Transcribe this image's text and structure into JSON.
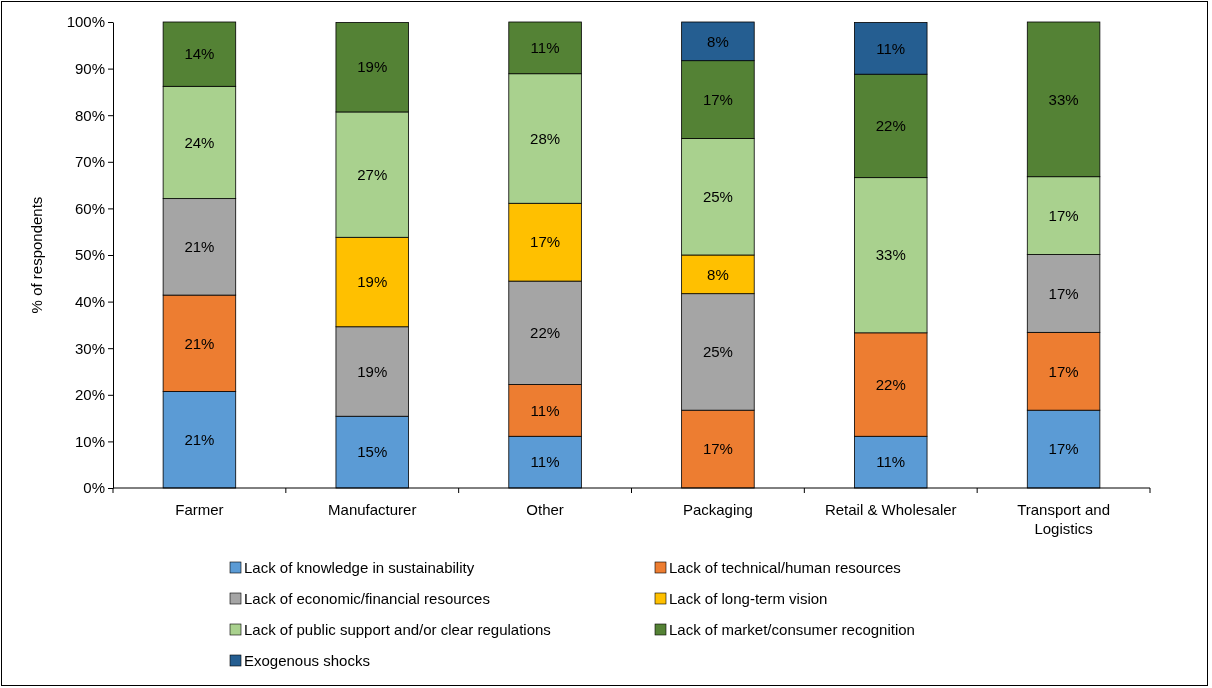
{
  "chart_data": {
    "type": "bar",
    "stacked": true,
    "ylabel": "% of respondents",
    "categories": [
      "Farmer",
      "Manufacturer",
      "Other",
      "Packaging",
      "Retail & Wholesaler",
      "Transport and Logistics"
    ],
    "ylim": [
      0,
      100
    ],
    "yticks": [
      {
        "value": 0,
        "label": "0%"
      },
      {
        "value": 10,
        "label": "10%"
      },
      {
        "value": 20,
        "label": "20%"
      },
      {
        "value": 30,
        "label": "30%"
      },
      {
        "value": 40,
        "label": "40%"
      },
      {
        "value": 50,
        "label": "50%"
      },
      {
        "value": 60,
        "label": "60%"
      },
      {
        "value": 70,
        "label": "70%"
      },
      {
        "value": 80,
        "label": "80%"
      },
      {
        "value": 90,
        "label": "90%"
      },
      {
        "value": 100,
        "label": "100%"
      }
    ],
    "grid": false,
    "legend": "bottom",
    "series": [
      {
        "name": "Lack of knowledge in sustainability",
        "color": "#5b9bd5",
        "values": [
          20.7,
          15.4,
          11.1,
          0,
          11.1,
          16.7
        ],
        "value_labels": [
          "21%",
          "15%",
          "11%",
          null,
          "11%",
          "17%"
        ]
      },
      {
        "name": "Lack of technical/human resources",
        "color": "#ed7d31",
        "values": [
          20.7,
          0,
          11.1,
          16.7,
          22.2,
          16.7
        ],
        "value_labels": [
          "21%",
          null,
          "11%",
          "17%",
          "22%",
          "17%"
        ]
      },
      {
        "name": "Lack of economic/financial resources",
        "color": "#a5a5a5",
        "values": [
          20.7,
          19.2,
          22.2,
          25,
          0,
          16.7
        ],
        "value_labels": [
          "21%",
          "19%",
          "22%",
          "25%",
          null,
          "17%"
        ]
      },
      {
        "name": "Lack of long-term vision",
        "color": "#ffc000",
        "values": [
          0,
          19.2,
          16.7,
          8.3,
          0,
          0
        ],
        "value_labels": [
          null,
          "19%",
          "17%",
          "8%",
          null,
          null
        ]
      },
      {
        "name": "Lack of public support and/or clear regulations",
        "color": "#a9d18e",
        "values": [
          24.1,
          26.9,
          27.8,
          25,
          33.3,
          16.7
        ],
        "value_labels": [
          "24%",
          "27%",
          "28%",
          "25%",
          "33%",
          "17%"
        ]
      },
      {
        "name": "Lack of market/consumer recognition",
        "color": "#548235",
        "values": [
          13.8,
          19.2,
          11.1,
          16.7,
          22.2,
          33.2
        ],
        "value_labels": [
          "14%",
          "19%",
          "11%",
          "17%",
          "22%",
          "33%"
        ]
      },
      {
        "name": "Exogenous shocks",
        "color": "#255e91",
        "values": [
          0,
          0,
          0,
          8.3,
          11.1,
          0
        ],
        "value_labels": [
          null,
          null,
          null,
          "8%",
          "11%",
          null
        ]
      }
    ]
  }
}
